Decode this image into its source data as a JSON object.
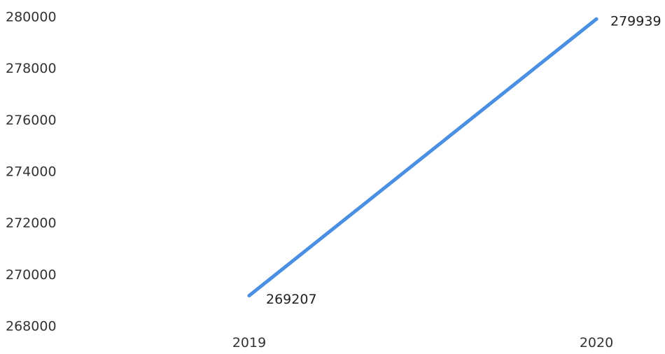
{
  "chart_data": {
    "type": "line",
    "x": [
      "2019",
      "2020"
    ],
    "series": [
      {
        "values": [
          269207,
          279939
        ],
        "color": "#4a8fe2"
      }
    ],
    "data_labels": [
      "269207",
      "279939"
    ],
    "yticks": [
      "280000",
      "278000",
      "276000",
      "274000",
      "272000",
      "270000",
      "268000"
    ],
    "ylim": [
      268000,
      280000
    ],
    "grid": false,
    "legend": "none",
    "title": "",
    "xlabel": "",
    "ylabel": ""
  }
}
